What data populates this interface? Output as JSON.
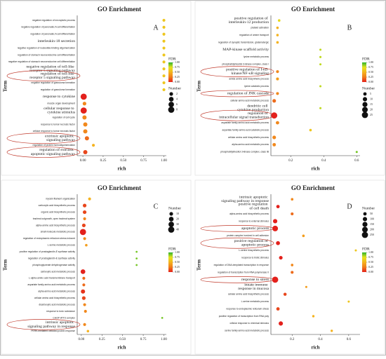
{
  "chart_data": [
    {
      "type": "scatter",
      "title": "GO Enrichment",
      "panel_label": "A",
      "xlabel": "rich",
      "ylabel": "Term",
      "categories": [
        "negative regulation of necroptotic process",
        "negative regulation of pancreatic A cell differentiation",
        "regulation of pancreatic A cell differentiation",
        "interleukin-18 secretion",
        "negative regulation of nucleotide-binding oligomerization",
        "regulation of stomach neuroendocrine cell differentiation",
        "negative regulation of stomach neuroendocrine cell differentiation",
        "negative regulation of toll-like receptor 5 signaling pathway",
        "regulation of toll-like receptor 5 signaling pathway",
        "negative regulation of granuloma formation",
        "regulation of granuloma formation",
        "response to cytokine",
        "muscle organ development",
        "cellular response to cytokine stimulus",
        "regulation of cell cycle",
        "response to tumor necrosis factor",
        "cellular response to tumor necrosis factor",
        "extrinsic apoptotic signaling pathway",
        "regulation of protein homooligomerization",
        "regulation of extrinsic apoptotic signaling pathway"
      ],
      "x": [
        1,
        1,
        1,
        1,
        1,
        1,
        1,
        1,
        1,
        1,
        1,
        0.01,
        0.02,
        0.01,
        0.02,
        0.03,
        0.03,
        0.05,
        0.13,
        0.03
      ],
      "number": [
        1,
        1,
        1,
        1,
        1,
        1,
        1,
        1,
        1,
        1,
        1,
        8,
        2,
        8,
        3,
        3,
        3,
        3,
        1,
        3
      ],
      "fdr": [
        0.6,
        0.6,
        0.6,
        0.6,
        0.6,
        0.6,
        0.6,
        0.6,
        0.6,
        0.6,
        0.6,
        0,
        0.3,
        0,
        0.3,
        0.3,
        0.3,
        0.2,
        0.5,
        0.1
      ],
      "xlim": [
        -0.07,
        1.03
      ],
      "xticks": [
        {
          "value": 0,
          "label": "0.00"
        },
        0.25,
        {
          "value": 0.5,
          "label": "0.50"
        },
        0.75,
        {
          "value": 1,
          "label": "1.00"
        }
      ],
      "fdr_title": "FDR",
      "fdr_ticks": [
        {
          "value": 1,
          "label": "1.00"
        },
        0.75,
        {
          "value": 0.5,
          "label": "0.50"
        },
        0.25,
        {
          "value": 0,
          "label": "0.00"
        }
      ],
      "fdr_colors": [
        "#e3211c",
        "#f07d1b",
        "#f5b31f",
        "#e4e31c",
        "#2db32d"
      ],
      "size_title": "Number",
      "size_values": [
        2,
        4,
        6,
        8
      ],
      "grid": false
    },
    {
      "type": "scatter",
      "title": "GO Enrichment",
      "panel_label": "B",
      "xlabel": "rich",
      "ylabel": "Term",
      "categories": [
        "positive regulation of interleukin-12 production",
        "platelet activation",
        "regulation of amine transport",
        "regulation of synaptic transmission, glutamatergic",
        "MAP-kinase scaffold activity",
        "lysine metabolic process",
        "phosphatidylinositol 3-kinase complex, class I",
        "positive regulation of I-κB kinase/NF-κB signaling",
        "amide amino acid biosynthetic process",
        "lysine catabolic process",
        "regulation of JNK cascade",
        "cellular amino acid metabolic process",
        "dendritic cell cytokine production",
        "regulation of intracellular signal transduction",
        "aspartate family amino acid metabolic process",
        "aspartate family amino acid catabolic process",
        "cellular amino acid biosynthetic process",
        "alpha-amino acid metabolic process",
        "phosphatidylinositol 3-kinase complex, class IB"
      ],
      "x": [
        0.13,
        0.12,
        0.12,
        0.12,
        0.38,
        0.38,
        0.38,
        0.12,
        0.12,
        0.38,
        0.12,
        0.1,
        0.38,
        0.1,
        0.12,
        0.32,
        0.1,
        0.1,
        0.6
      ],
      "number": [
        2,
        2,
        2,
        2,
        1,
        1,
        1,
        3,
        3,
        1,
        3,
        6,
        1,
        25,
        5,
        2,
        6,
        5,
        1
      ],
      "fdr": [
        0.7,
        0.5,
        0.5,
        0.5,
        0.8,
        0.8,
        0.8,
        0.3,
        0.4,
        0.8,
        0.3,
        0.2,
        0.8,
        0,
        0.3,
        0.6,
        0.3,
        0.3,
        0.9
      ],
      "xlim": [
        0.08,
        0.62
      ],
      "xticks": [
        0.2,
        0.4,
        0.6
      ],
      "fdr_title": "FDR",
      "fdr_ticks": [
        {
          "value": 1,
          "label": "1.00"
        },
        0.75,
        {
          "value": 0.5,
          "label": "0.50"
        },
        0.25,
        {
          "value": 0,
          "label": "0.00"
        }
      ],
      "fdr_colors": [
        "#e3211c",
        "#f07d1b",
        "#f5b31f",
        "#e4e31c",
        "#2db32d"
      ],
      "size_title": "Number",
      "size_values": [
        5,
        10,
        15,
        20,
        25
      ],
      "grid": false
    },
    {
      "type": "scatter",
      "title": "GO Enrichment",
      "panel_label": "C",
      "xlabel": "rich",
      "ylabel": "Term",
      "categories": [
        "myosin filament organization",
        "carboxylic acid biosynthetic process",
        "organic acid biosynthetic process",
        "tracheal outgrowth, open tracheal system",
        "alpha-amino acid biosynthetic process",
        "small molecule metabolic process",
        "regulation of endoplasmic reticulum stress-induced",
        "L-serine metabolic process",
        "positive regulation of prostaglandin-E synthase activity",
        "regulation of prostaglandin-E synthase activity",
        "phosphoglycerate dehydrogenase activity",
        "carboxylic acid metabolic process",
        "L-alpha-amino acid transmembrane transport",
        "aspartate family amino acid metabolic process",
        "alpha-amino acid metabolic process",
        "cellular amino acid biosynthetic process",
        "dicarboxylic acid metabolic process",
        "response to toxic substance",
        "CHOP-ATF3 complex",
        "intrinsic apoptotic signaling pathway in response",
        "PERK-mediated unfolded protein response"
      ],
      "x": [
        0.1,
        0.04,
        0.04,
        0.04,
        0.03,
        0.02,
        0.04,
        0.06,
        0.67,
        0.67,
        0.67,
        0.02,
        0.03,
        0.03,
        0.02,
        0.03,
        0.04,
        0.05,
        0.98,
        0.04,
        0.08
      ],
      "number": [
        5,
        10,
        10,
        5,
        10,
        40,
        5,
        3,
        1,
        1,
        1,
        20,
        5,
        5,
        15,
        10,
        5,
        5,
        1,
        5,
        3
      ],
      "fdr": [
        0.5,
        0.1,
        0.1,
        0.3,
        0.1,
        0,
        0.3,
        0.4,
        0.9,
        0.9,
        0.9,
        0,
        0.2,
        0.2,
        0.05,
        0.1,
        0.3,
        0.3,
        0.9,
        0.3,
        0.5
      ],
      "xlim": [
        -0.05,
        1.03
      ],
      "xticks": [
        {
          "value": 0,
          "label": "0.00"
        },
        0.25,
        {
          "value": 0.5,
          "label": "0.50"
        },
        0.75,
        {
          "value": 1,
          "label": "1.00"
        }
      ],
      "fdr_title": "FDR",
      "fdr_ticks": [
        {
          "value": 1,
          "label": "1.00"
        },
        0.75,
        {
          "value": 0.5,
          "label": "0.50"
        },
        0.25,
        {
          "value": 0,
          "label": "0.00"
        }
      ],
      "fdr_colors": [
        "#e3211c",
        "#f07d1b",
        "#f5b31f",
        "#e4e31c",
        "#2db32d"
      ],
      "size_title": "Number",
      "size_values": [
        10,
        20,
        30,
        40
      ],
      "grid": false
    },
    {
      "type": "scatter",
      "title": "GO Enrichment",
      "panel_label": "D",
      "xlabel": "rich",
      "ylabel": "Term",
      "categories": [
        "intrinsic apoptotic signaling pathway in response",
        "positive regulation of cell death",
        "alpha-amino acid biosynthetic process",
        "response to external stimulus",
        "apoptotic process",
        "protein complex involved in cell adhesion",
        "positive regulation of apoptotic process",
        "L-serine biosynthetic process",
        "response to biotic stimulus",
        "regulation of DNA-templated transcription in response",
        "regulation of transcription from RNA polymerase II",
        "response to stress",
        "innate immune response in mucosa",
        "cellular amino acid biosynthetic process",
        "L-serine metabolic process",
        "response to endoplasmic reticulum stress",
        "positive regulation of transcription from RNA poly",
        "cellular response to chemical stimulus",
        "serine family amino acid metabolic process"
      ],
      "x": [
        0.2,
        0.1,
        0.2,
        0.08,
        0.08,
        0.28,
        0.1,
        0.65,
        0.12,
        0.2,
        0.2,
        0.08,
        0.3,
        0.15,
        0.6,
        0.1,
        0.35,
        0.12,
        0.48
      ],
      "number": [
        20,
        50,
        30,
        100,
        200,
        20,
        80,
        10,
        60,
        20,
        30,
        250,
        10,
        40,
        10,
        50,
        15,
        100,
        15
      ],
      "fdr": [
        0.3,
        0,
        0.2,
        0,
        0,
        0.4,
        0,
        0.6,
        0,
        0.3,
        0.2,
        0,
        0.4,
        0.1,
        0.6,
        0.1,
        0.5,
        0,
        0.5
      ],
      "xlim": [
        0.05,
        0.68
      ],
      "xticks": [
        0.2,
        0.4,
        0.6
      ],
      "fdr_title": "FDR",
      "fdr_ticks": [
        {
          "value": 1,
          "label": "1.00"
        },
        0.75,
        {
          "value": 0.5,
          "label": "0.50"
        },
        0.25,
        {
          "value": 0,
          "label": "0.00"
        }
      ],
      "fdr_colors": [
        "#e3211c",
        "#f07d1b",
        "#f5b31f",
        "#e4e31c",
        "#2db32d"
      ],
      "size_title": "Number",
      "size_values": [
        50,
        100,
        150,
        200,
        250
      ],
      "grid": false
    }
  ]
}
